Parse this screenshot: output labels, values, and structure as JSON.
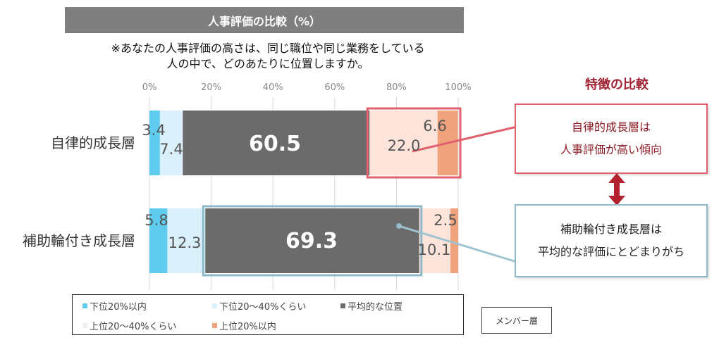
{
  "title": "人事評価の比較（%）",
  "question": {
    "line1": "※あなたの人事評価の高さは、同じ職位や同じ業務をしている",
    "line2": "人の中で、どのあたりに位置しますか。"
  },
  "chart_data": {
    "type": "bar",
    "orientation": "horizontal",
    "stacked": true,
    "xlim": [
      0,
      100
    ],
    "ticks": [
      "0%",
      "20%",
      "40%",
      "60%",
      "80%",
      "100%"
    ],
    "grid": true,
    "categories": [
      "自律的成長層",
      "補助輪付き成長層"
    ],
    "series": [
      {
        "name": "下位20%以内",
        "values": [
          3.4,
          5.8
        ],
        "labels": [
          "3.4",
          "5.8"
        ],
        "color": "#5ecbef"
      },
      {
        "name": "下位20～40%くらい",
        "values": [
          7.4,
          12.3
        ],
        "labels": [
          "7.4",
          "12.3"
        ],
        "color": "#d9f0fa"
      },
      {
        "name": "平均的な位置",
        "values": [
          60.5,
          69.3
        ],
        "labels": [
          "60.5",
          "69.3"
        ],
        "color": "#6b6b6b"
      },
      {
        "name": "上位20～40%くらい",
        "values": [
          22.0,
          10.1
        ],
        "labels": [
          "22.0",
          "10.1"
        ],
        "color": "#fde4da"
      },
      {
        "name": "上位20%以内",
        "values": [
          6.6,
          2.5
        ],
        "labels": [
          "6.6",
          "2.5"
        ],
        "color": "#f0a27c"
      }
    ],
    "legend_position": "bottom"
  },
  "legend_items": [
    "下位20%以内",
    "下位20～40%くらい",
    "平均的な位置",
    "上位20～40%くらい",
    "上位20%以内"
  ],
  "member_label": "メンバー層",
  "feature": {
    "title": "特徴の比較",
    "red_line1": "自律的成長層は",
    "red_line2": "人事評価が高い傾向",
    "blue_line1": "補助輪付き成長層は",
    "blue_line2": "平均的な評価にとどまりがち"
  },
  "colors": {
    "highlight_red": "#e0606d",
    "highlight_blue": "#8fb8c8",
    "accent_dark_red": "#a02433"
  }
}
